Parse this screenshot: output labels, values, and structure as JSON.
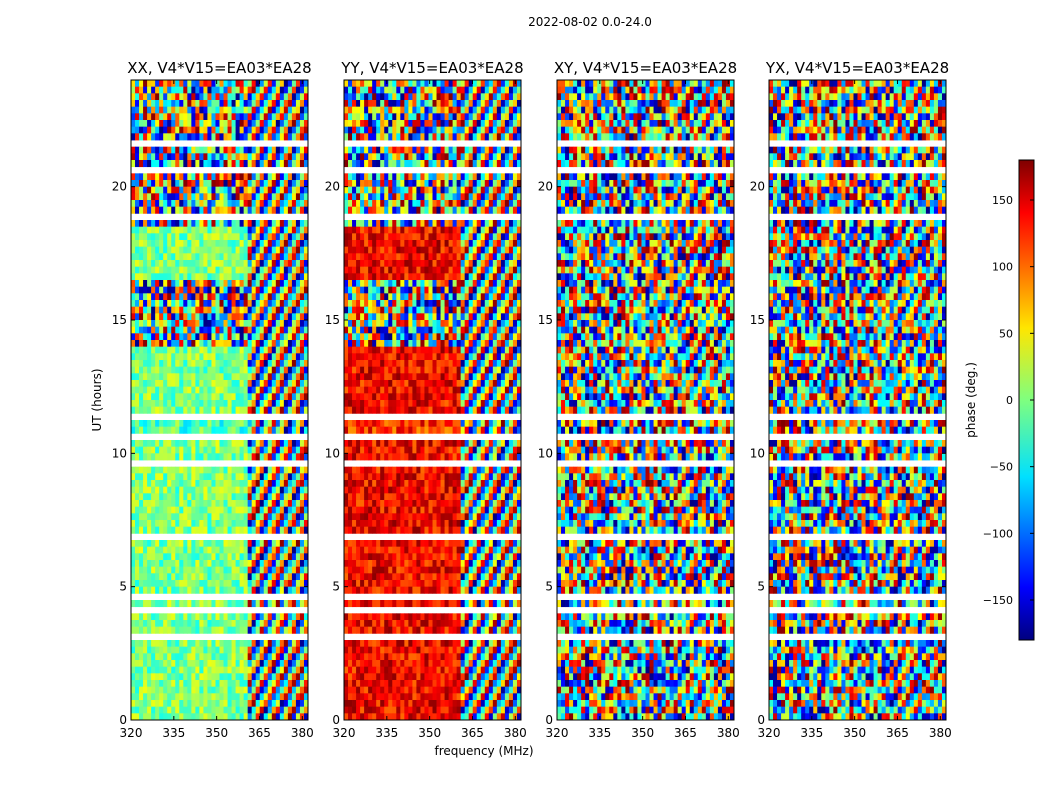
{
  "chart_data": {
    "type": "heatmap",
    "suptitle": "2022-08-02 0.0-24.0",
    "xlabel": "frequency (MHz)",
    "ylabel": "UT (hours)",
    "xlim": [
      320,
      382
    ],
    "ylim": [
      0,
      24
    ],
    "x_ticks": [
      320,
      335,
      350,
      365,
      380
    ],
    "y_ticks": [
      0,
      5,
      10,
      15,
      20
    ],
    "colorbar": {
      "label": "phase (deg.)",
      "range": [
        -180,
        180
      ],
      "ticks": [
        150,
        100,
        50,
        0,
        -50,
        -100,
        -150
      ],
      "colormap": "jet"
    },
    "panels": [
      {
        "title": "XX, V4*V15=EA03*EA28"
      },
      {
        "title": "YY, V4*V15=EA03*EA28"
      },
      {
        "title": "XY, V4*V15=EA03*EA28"
      },
      {
        "title": "YX, V4*V15=EA03*EA28"
      }
    ]
  }
}
